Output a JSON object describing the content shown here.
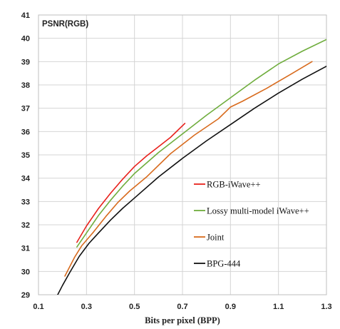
{
  "chart_data": {
    "type": "line",
    "title": "PSNR(RGB)",
    "xlabel": "Bits per pixel (BPP)",
    "ylabel": "",
    "xlim": [
      0.1,
      1.3
    ],
    "ylim": [
      29,
      41
    ],
    "x_ticks": [
      "0.1",
      "0.3",
      "0.5",
      "0.7",
      "0.9",
      "1.1",
      "1.3"
    ],
    "y_ticks": [
      "29",
      "30",
      "31",
      "32",
      "33",
      "34",
      "35",
      "36",
      "37",
      "38",
      "39",
      "40",
      "41"
    ],
    "grid": true,
    "legend_position": "center-right",
    "series": [
      {
        "name": "RGB-iWave++",
        "color": "#e8211c",
        "x": [
          0.26,
          0.3,
          0.35,
          0.4,
          0.45,
          0.5,
          0.55,
          0.6,
          0.65,
          0.71
        ],
        "y": [
          31.25,
          31.95,
          32.7,
          33.35,
          33.95,
          34.5,
          34.95,
          35.35,
          35.75,
          36.35
        ]
      },
      {
        "name": "Lossy multi-model iWave++",
        "color": "#6fad3d",
        "x": [
          0.26,
          0.3,
          0.35,
          0.4,
          0.45,
          0.5,
          0.6,
          0.7,
          0.8,
          0.9,
          1.0,
          1.1,
          1.2,
          1.3
        ],
        "y": [
          31.05,
          31.65,
          32.4,
          33.05,
          33.65,
          34.2,
          35.1,
          35.9,
          36.7,
          37.45,
          38.2,
          38.9,
          39.45,
          39.95
        ]
      },
      {
        "name": "Joint",
        "color": "#d86b1e",
        "x": [
          0.21,
          0.25,
          0.28,
          0.33,
          0.38,
          0.43,
          0.48,
          0.55,
          0.65,
          0.75,
          0.85,
          0.9,
          0.95,
          1.05,
          1.15,
          1.24
        ],
        "y": [
          29.8,
          30.6,
          31.1,
          31.7,
          32.35,
          32.95,
          33.45,
          34.05,
          35.05,
          35.85,
          36.55,
          37.05,
          37.3,
          37.85,
          38.45,
          39.0
        ]
      },
      {
        "name": "BPG-444",
        "color": "#111111",
        "x": [
          0.18,
          0.2,
          0.23,
          0.27,
          0.31,
          0.35,
          0.4,
          0.45,
          0.5,
          0.6,
          0.7,
          0.8,
          0.9,
          1.0,
          1.1,
          1.2,
          1.3
        ],
        "y": [
          29.0,
          29.4,
          29.95,
          30.65,
          31.2,
          31.65,
          32.2,
          32.7,
          33.15,
          34.05,
          34.85,
          35.6,
          36.3,
          37.0,
          37.65,
          38.25,
          38.8
        ]
      }
    ]
  }
}
